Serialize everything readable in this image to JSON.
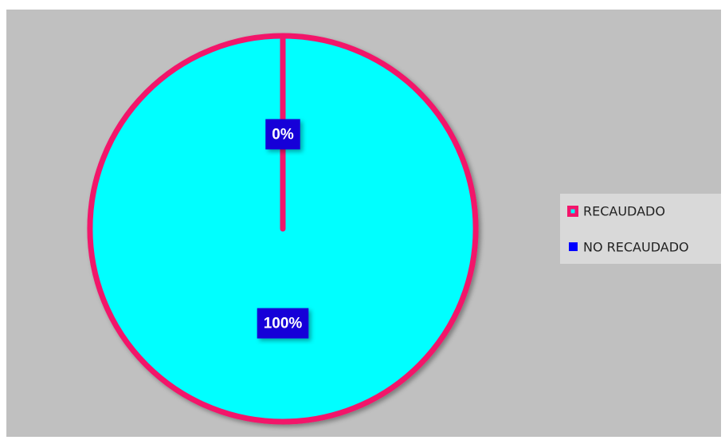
{
  "chart_data": {
    "type": "pie",
    "categories": [
      "RECAUDADO",
      "NO RECAUDADO"
    ],
    "values": [
      100,
      0
    ],
    "value_labels": [
      "100%",
      "0%"
    ],
    "colors": [
      "#00ffff",
      "#0000ff"
    ],
    "edge_color": "#f2156b",
    "label_color": "#1400d8",
    "legend": "right"
  }
}
